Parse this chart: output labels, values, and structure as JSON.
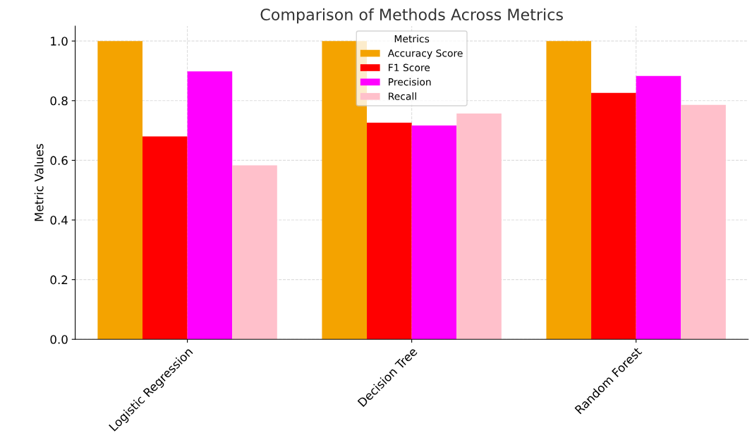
{
  "chart_data": {
    "type": "bar",
    "title": "Comparison of Methods Across Metrics",
    "ylabel": "Metric Values",
    "legend_title": "Metrics",
    "categories": [
      "Logistic Regression",
      "Decision Tree",
      "Random Forest"
    ],
    "series": [
      {
        "name": "Accuracy Score",
        "color": "#f4a300",
        "values": [
          1.0,
          1.0,
          1.0
        ]
      },
      {
        "name": "F1 Score",
        "color": "#ff0000",
        "values": [
          0.68,
          0.726,
          0.826
        ]
      },
      {
        "name": "Precision",
        "color": "#ff00ff",
        "values": [
          0.898,
          0.717,
          0.883
        ]
      },
      {
        "name": "Recall",
        "color": "#ffc0cb",
        "values": [
          0.583,
          0.757,
          0.786
        ]
      }
    ],
    "ylim": [
      0,
      1.05
    ],
    "yticks": [
      {
        "value": 0,
        "label": "0.0"
      },
      {
        "value": 0.2,
        "label": "0.2"
      },
      {
        "value": 0.4,
        "label": "0.4"
      },
      {
        "value": 0.6,
        "label": "0.6"
      },
      {
        "value": 0.8,
        "label": "0.8"
      },
      {
        "value": 1.0,
        "label": "1.0"
      }
    ],
    "grid": true,
    "legend": "top"
  }
}
